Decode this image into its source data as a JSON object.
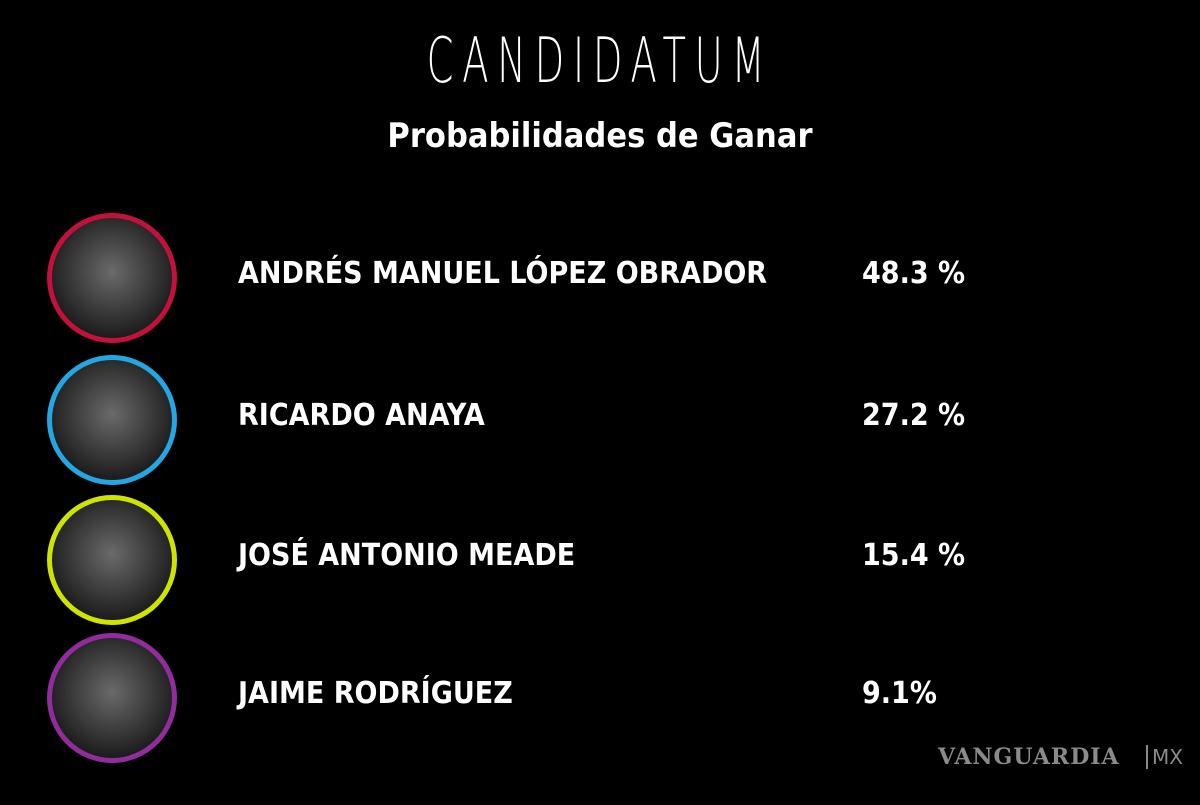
{
  "header": {
    "title": "CANDIDATUM",
    "subtitle": "Probabilidades de Ganar"
  },
  "candidates": [
    {
      "name": "ANDRÉS MANUEL LÓPEZ OBRADOR",
      "percent": "48.3 %",
      "ring_color": "#c3103c"
    },
    {
      "name": "RICARDO ANAYA",
      "percent": "27.2 %",
      "ring_color": "#23a6e2"
    },
    {
      "name": "JOSÉ ANTONIO MEADE",
      "percent": "15.4 %",
      "ring_color": "#cde300"
    },
    {
      "name": "JAIME RODRÍGUEZ",
      "percent": "9.1%",
      "ring_color": "#922c9c"
    }
  ],
  "footer": {
    "brand": "VANGUARDIA",
    "suffix": "MX"
  }
}
